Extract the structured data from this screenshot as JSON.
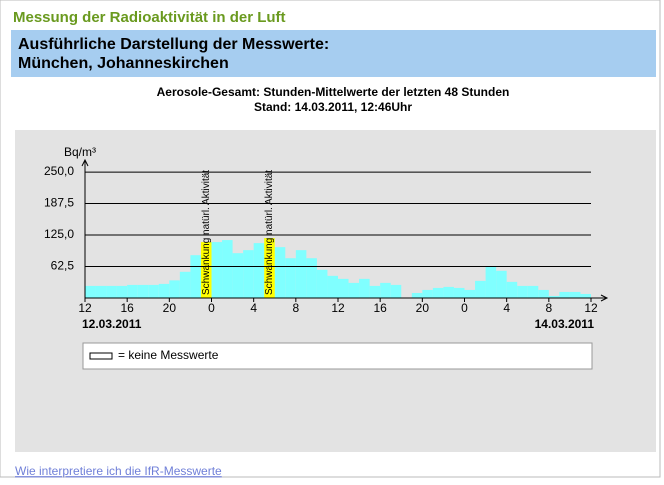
{
  "page": {
    "heading": "Messung der Radioaktivität in der Luft",
    "subheading_line1": "Ausführliche Darstellung der Messwerte:",
    "subheading_line2": "München, Johanneskirchen",
    "link": "Wie interpretiere ich die IfR-Messwerte"
  },
  "chart_data": {
    "type": "histogram",
    "title": "Aerosole-Gesamt: Stunden-Mittelwerte der letzten 48 Stunden",
    "subtitle": "Stand: 14.03.2011, 12:46Uhr",
    "y_label": "Bq/m³",
    "bins": [
      0,
      1,
      2,
      3,
      4,
      5,
      6,
      7,
      8,
      9,
      10,
      11,
      12,
      13,
      14,
      15,
      16,
      17,
      18,
      19,
      20,
      21,
      22,
      23,
      24,
      25,
      26,
      27,
      28,
      29,
      30,
      31,
      32,
      33,
      34,
      35,
      36,
      37,
      38,
      39,
      40,
      41,
      42,
      43,
      44,
      45,
      46,
      47,
      48
    ],
    "values": [
      24,
      24,
      24,
      24,
      26,
      26,
      26,
      28,
      35,
      52,
      85,
      111,
      111,
      115,
      89,
      95,
      109,
      119,
      101,
      79,
      95,
      79,
      56,
      44,
      38,
      30,
      38,
      24,
      30,
      26,
      null,
      10,
      16,
      20,
      22,
      20,
      16,
      34,
      62,
      54,
      32,
      24,
      24,
      16,
      4,
      12,
      12,
      8
    ],
    "color": "#80ffff",
    "xlim": [
      0,
      48
    ],
    "xticks": [
      {
        "value": 0,
        "label": "12"
      },
      {
        "value": 4,
        "label": "16"
      },
      {
        "value": 8,
        "label": "20"
      },
      {
        "value": 12,
        "label": "0"
      },
      {
        "value": 16,
        "label": "4"
      },
      {
        "value": 20,
        "label": "8"
      },
      {
        "value": 24,
        "label": "12"
      },
      {
        "value": 28,
        "label": "16"
      },
      {
        "value": 32,
        "label": "20"
      },
      {
        "value": 36,
        "label": "0"
      },
      {
        "value": 40,
        "label": "4"
      },
      {
        "value": 44,
        "label": "8"
      },
      {
        "value": 48,
        "label": "12"
      }
    ],
    "ylim": [
      0,
      270
    ],
    "yticks": [
      {
        "value": 62.5,
        "label": "62,5"
      },
      {
        "value": 125,
        "label": "125,0"
      },
      {
        "value": 187.5,
        "label": "187,5"
      },
      {
        "value": 250,
        "label": "250,0"
      }
    ],
    "grid": true,
    "annotations": [
      {
        "x": 11,
        "text": "Schwankung natürl. Aktivität",
        "color": "#ffff00"
      },
      {
        "x": 17,
        "text": "Schwankung natürl. Aktivität",
        "color": "#ffff00"
      }
    ],
    "date_labels": [
      {
        "x": 0,
        "text": "12.03.2011"
      },
      {
        "x": 48,
        "text": "14.03.2011"
      }
    ],
    "legend_note": "= keine Messwerte"
  }
}
